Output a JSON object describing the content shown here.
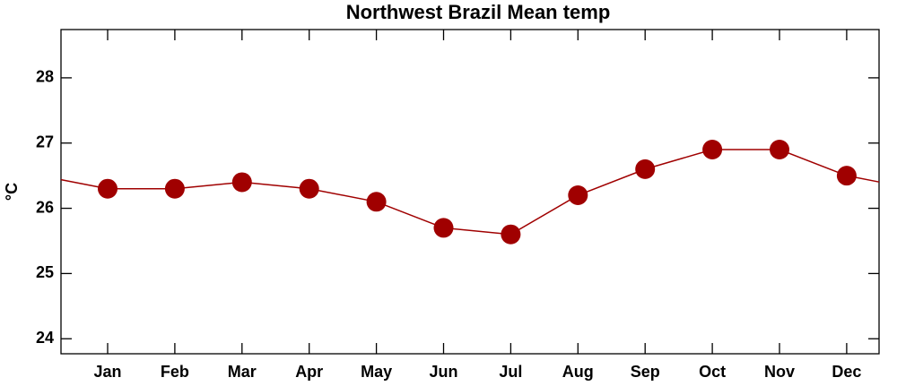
{
  "chart_data": {
    "type": "line",
    "title": "Northwest Brazil Mean temp",
    "ylabel": "°C",
    "categories": [
      "Jan",
      "Feb",
      "Mar",
      "Apr",
      "May",
      "Jun",
      "Jul",
      "Aug",
      "Sep",
      "Oct",
      "Nov",
      "Dec"
    ],
    "series": [
      {
        "color": "#a00000",
        "values": [
          26.3,
          26.3,
          26.4,
          26.3,
          26.1,
          25.7,
          25.6,
          26.2,
          26.6,
          26.9,
          26.9,
          26.5
        ]
      }
    ],
    "ylim": [
      23.77,
      28.74
    ],
    "yticks": [
      24,
      25,
      26,
      27,
      28
    ]
  }
}
